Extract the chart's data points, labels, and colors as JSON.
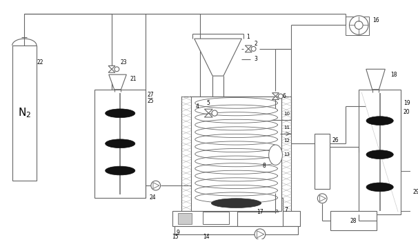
{
  "figsize": [
    6.06,
    3.51
  ],
  "dpi": 100,
  "bg": "#ffffff",
  "lc": "#666666",
  "dc": "#111111",
  "hatch_color": "#aaaaaa"
}
